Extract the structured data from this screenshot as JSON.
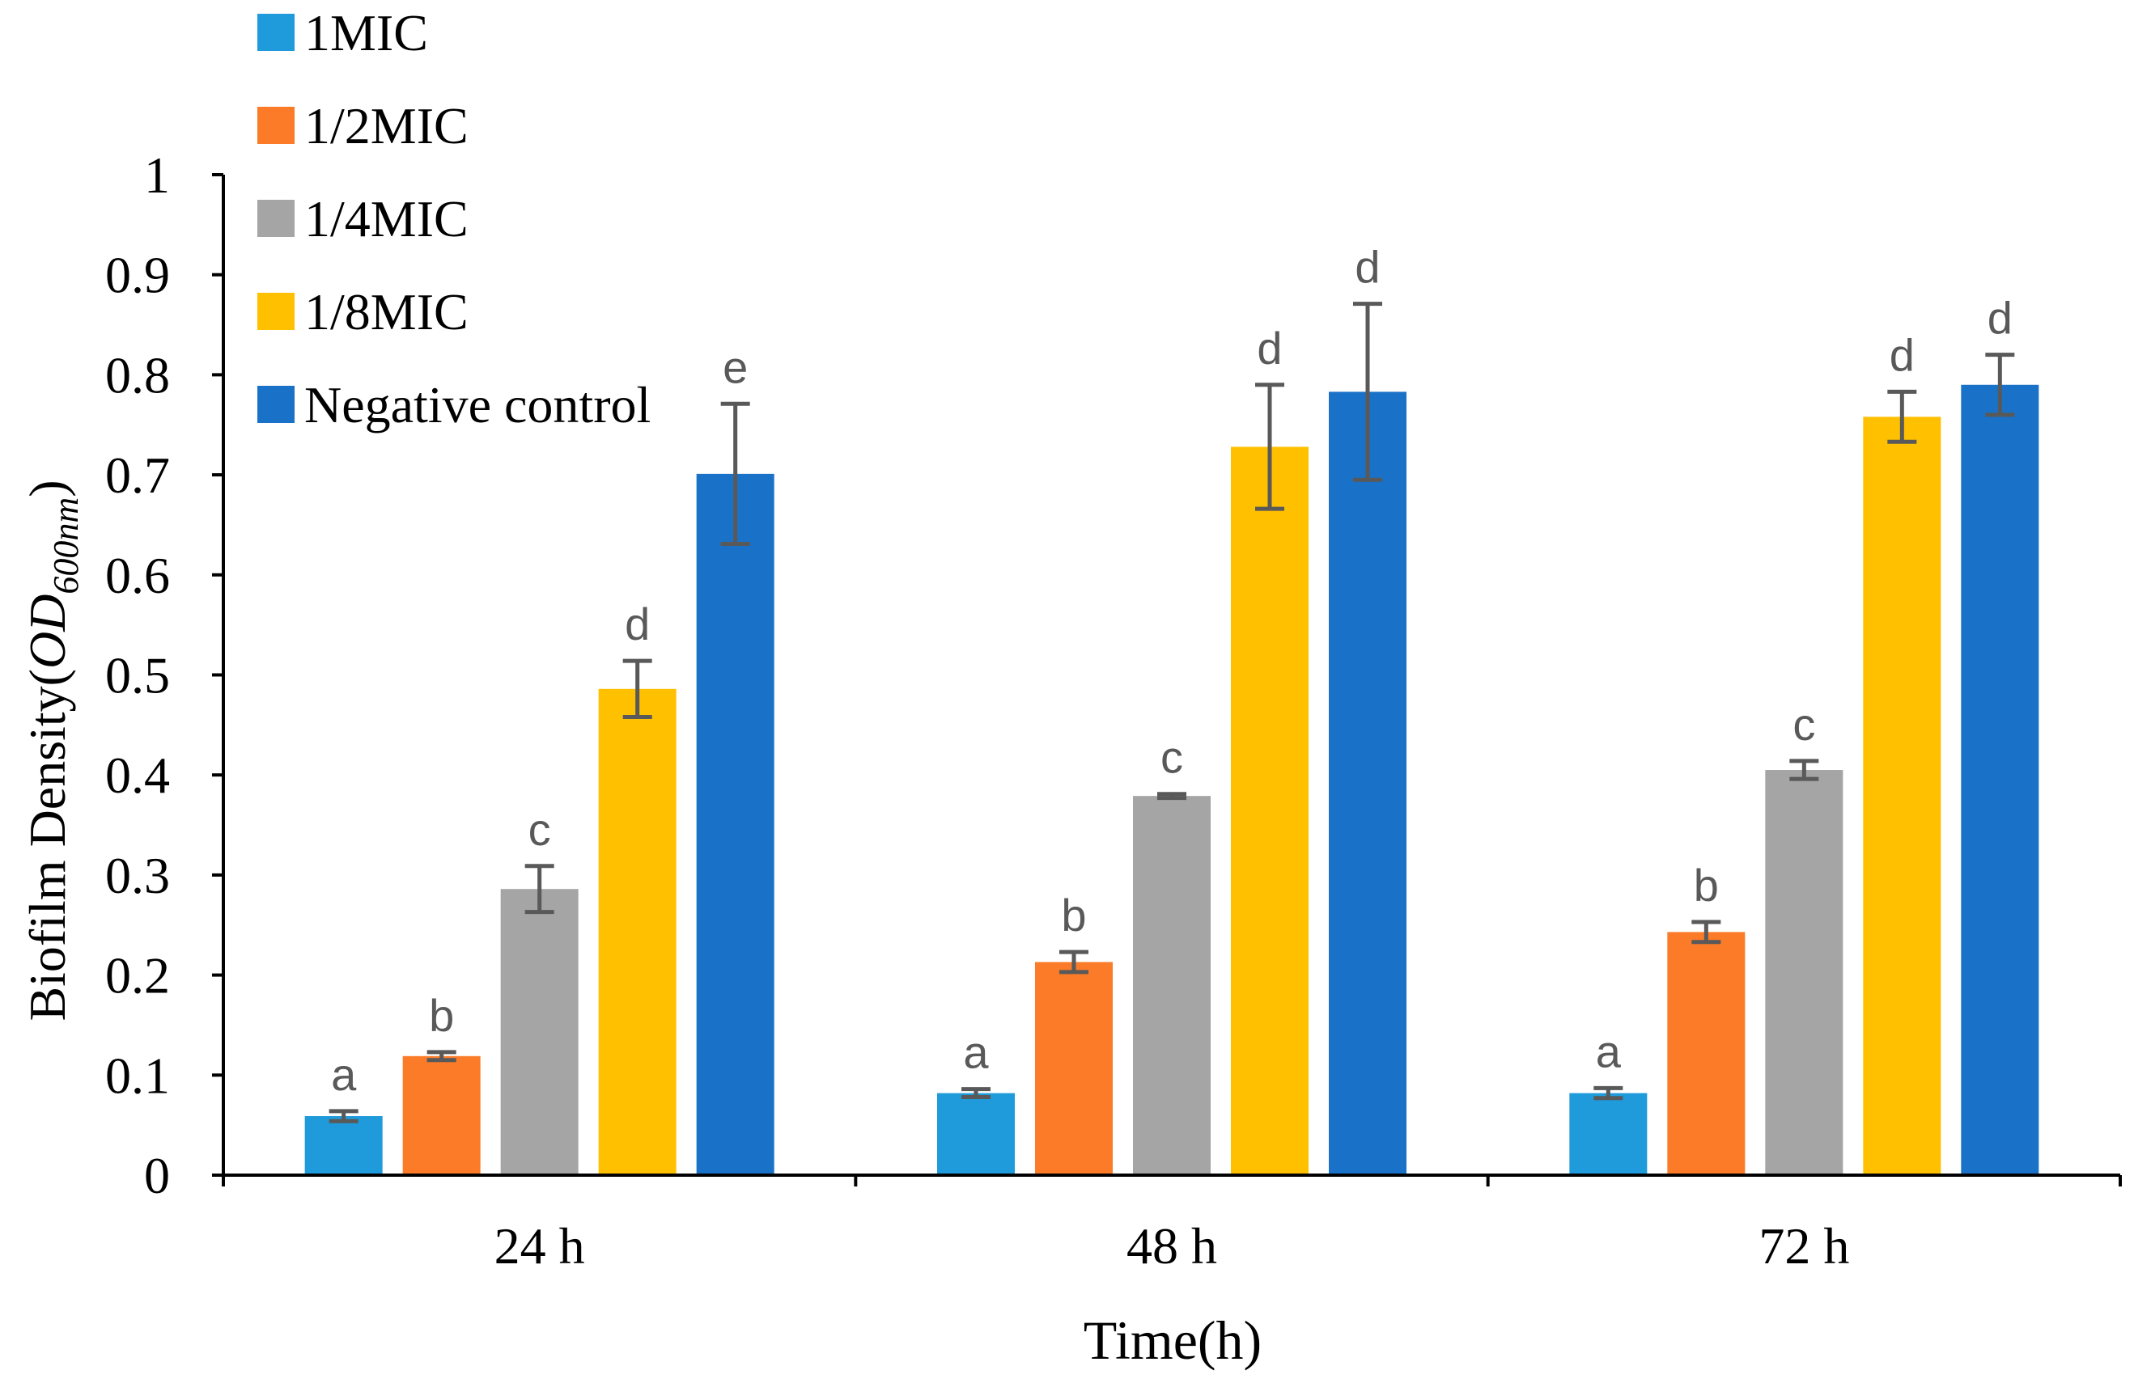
{
  "chart_data": {
    "type": "bar",
    "title": "",
    "xlabel": "Time(h)",
    "ylabel": "Biofilm Density(",
    "ylabel_italic": "OD",
    "ylabel_subscript": "600nm",
    "ylabel_close": ")",
    "ylim": [
      0,
      1
    ],
    "yticks": [
      0,
      0.1,
      0.2,
      0.3,
      0.4,
      0.5,
      0.6,
      0.7,
      0.8,
      0.9,
      1
    ],
    "ytick_labels": [
      "0",
      "0.1",
      "0.2",
      "0.3",
      "0.4",
      "0.5",
      "0.6",
      "0.7",
      "0.8",
      "0.9",
      "1"
    ],
    "categories": [
      "24 h",
      "48 h",
      "72 h"
    ],
    "grid": false,
    "legend_position": "top-left",
    "series": [
      {
        "name": "1MIC",
        "color": "#1f9bdb",
        "values": [
          0.059,
          0.082,
          0.082
        ],
        "errors": [
          0.005,
          0.004,
          0.005
        ],
        "letters": [
          "a",
          "a",
          "a"
        ]
      },
      {
        "name": "1/2MIC",
        "color": "#fb7b28",
        "values": [
          0.119,
          0.213,
          0.243
        ],
        "errors": [
          0.004,
          0.01,
          0.01
        ],
        "letters": [
          "b",
          "b",
          "b"
        ]
      },
      {
        "name": "1/4MIC",
        "color": "#a5a5a5",
        "values": [
          0.286,
          0.379,
          0.405
        ],
        "errors": [
          0.023,
          0.002,
          0.009
        ],
        "letters": [
          "c",
          "c",
          "c"
        ]
      },
      {
        "name": "1/8MIC",
        "color": "#ffc000",
        "values": [
          0.486,
          0.728,
          0.758
        ],
        "errors": [
          0.028,
          0.062,
          0.025
        ],
        "letters": [
          "d",
          "d",
          "d"
        ]
      },
      {
        "name": "Negative control",
        "color": "#1a72c8",
        "values": [
          0.701,
          0.783,
          0.79
        ],
        "errors": [
          0.07,
          0.088,
          0.03
        ],
        "letters": [
          "e",
          "d",
          "d"
        ]
      }
    ],
    "colors": {
      "axis": "#000000",
      "error_bar": "#595959",
      "letter": "#595959"
    }
  }
}
